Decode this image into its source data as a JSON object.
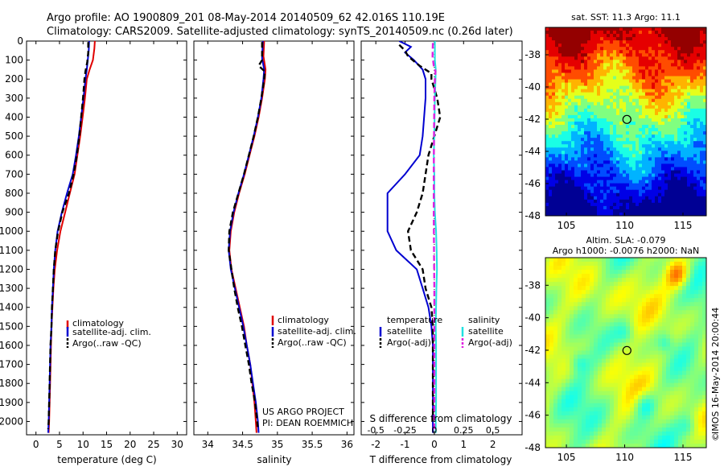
{
  "header": {
    "line1": "Argo profile: AO 1900809_201 08-May-2014 20140509_62 42.016S 110.19E",
    "line2": "Climatology: CARS2009. Satellite-adjusted climatology: synTS_20140509.nc (0.26d later)"
  },
  "colors": {
    "climatology": "#e00000",
    "satellite": "#0000d0",
    "argo": "#000000",
    "salinity_satellite": "#20e0e0",
    "salinity_argo": "#e020e0"
  },
  "notes": {
    "project_line1": "US ARGO PROJECT",
    "project_line2": "PI: DEAN ROEMMICH",
    "side_stamp": "IMOS 16-May-2014 20:00:44",
    "copyright_symbol": "©"
  },
  "chart_data": [
    {
      "type": "line",
      "id": "temperature",
      "xlabel": "temperature (deg C)",
      "xlim": [
        -2,
        32
      ],
      "ylim": [
        2070,
        0
      ],
      "xticks": [
        0,
        5,
        10,
        15,
        20,
        25,
        30
      ],
      "yticks": [
        0,
        100,
        200,
        300,
        400,
        500,
        600,
        700,
        800,
        900,
        1000,
        1100,
        1200,
        1300,
        1400,
        1500,
        1600,
        1700,
        1800,
        1900,
        2000
      ],
      "legend_items": [
        "climatology",
        "satellite-adj. clim.",
        "Argo(..raw -QC)"
      ],
      "legend_position": "lower-left",
      "series": [
        {
          "name": "climatology",
          "color_key": "climatology",
          "dash": false,
          "points": [
            [
              12.5,
              0
            ],
            [
              12.4,
              40
            ],
            [
              12.1,
              100
            ],
            [
              11.4,
              150
            ],
            [
              10.8,
              200
            ],
            [
              10.4,
              300
            ],
            [
              9.9,
              400
            ],
            [
              9.4,
              500
            ],
            [
              8.8,
              600
            ],
            [
              8.2,
              700
            ],
            [
              7.2,
              800
            ],
            [
              6.2,
              900
            ],
            [
              5.2,
              1000
            ],
            [
              4.5,
              1100
            ],
            [
              4.0,
              1200
            ],
            [
              3.7,
              1300
            ],
            [
              3.5,
              1400
            ],
            [
              3.3,
              1500
            ],
            [
              3.2,
              1600
            ],
            [
              3.0,
              1800
            ],
            [
              2.8,
              2000
            ],
            [
              2.7,
              2060
            ]
          ]
        },
        {
          "name": "satellite-adj. clim.",
          "color_key": "satellite",
          "dash": false,
          "points": [
            [
              11.3,
              0
            ],
            [
              11.2,
              50
            ],
            [
              11.0,
              100
            ],
            [
              10.8,
              150
            ],
            [
              10.5,
              200
            ],
            [
              10.1,
              300
            ],
            [
              9.6,
              400
            ],
            [
              9.1,
              500
            ],
            [
              8.5,
              600
            ],
            [
              7.8,
              700
            ],
            [
              6.6,
              800
            ],
            [
              5.5,
              900
            ],
            [
              4.6,
              1000
            ],
            [
              4.1,
              1100
            ],
            [
              3.8,
              1200
            ],
            [
              3.6,
              1300
            ],
            [
              3.4,
              1400
            ],
            [
              3.3,
              1500
            ],
            [
              3.1,
              1600
            ],
            [
              2.9,
              1800
            ],
            [
              2.7,
              2000
            ],
            [
              2.6,
              2060
            ]
          ]
        },
        {
          "name": "Argo(..raw -QC)",
          "color_key": "argo",
          "dash": true,
          "points": [
            [
              11.1,
              5
            ],
            [
              11.1,
              60
            ],
            [
              10.9,
              110
            ],
            [
              10.5,
              160
            ],
            [
              10.3,
              200
            ],
            [
              10.0,
              300
            ],
            [
              9.6,
              400
            ],
            [
              9.2,
              500
            ],
            [
              8.7,
              600
            ],
            [
              8.0,
              700
            ],
            [
              7.0,
              800
            ],
            [
              5.6,
              900
            ],
            [
              4.7,
              1000
            ],
            [
              4.1,
              1100
            ],
            [
              3.8,
              1200
            ],
            [
              3.6,
              1300
            ],
            [
              3.4,
              1400
            ],
            [
              3.3,
              1500
            ],
            [
              3.1,
              1600
            ],
            [
              2.9,
              1800
            ],
            [
              2.7,
              2000
            ],
            [
              2.6,
              2040
            ]
          ]
        }
      ]
    },
    {
      "type": "line",
      "id": "salinity",
      "xlabel": "salinity",
      "xlim": [
        33.8,
        36.1
      ],
      "ylim": [
        2070,
        0
      ],
      "xticks": [
        34,
        34.5,
        35,
        35.5,
        36
      ],
      "legend_items": [
        "climatology",
        "satellite-adj. clim.",
        "Argo(..raw -QC)"
      ],
      "legend_position": "lower-right",
      "series": [
        {
          "name": "climatology",
          "color_key": "climatology",
          "dash": false,
          "points": [
            [
              34.81,
              0
            ],
            [
              34.8,
              80
            ],
            [
              34.83,
              150
            ],
            [
              34.82,
              200
            ],
            [
              34.78,
              300
            ],
            [
              34.73,
              400
            ],
            [
              34.67,
              500
            ],
            [
              34.6,
              600
            ],
            [
              34.53,
              700
            ],
            [
              34.45,
              800
            ],
            [
              34.38,
              900
            ],
            [
              34.33,
              1000
            ],
            [
              34.31,
              1100
            ],
            [
              34.34,
              1200
            ],
            [
              34.4,
              1300
            ],
            [
              34.46,
              1400
            ],
            [
              34.52,
              1500
            ],
            [
              34.56,
              1600
            ],
            [
              34.61,
              1700
            ],
            [
              34.64,
              1800
            ],
            [
              34.67,
              1900
            ],
            [
              34.69,
              2000
            ],
            [
              34.7,
              2060
            ]
          ]
        },
        {
          "name": "satellite-adj. clim.",
          "color_key": "satellite",
          "dash": false,
          "points": [
            [
              34.79,
              0
            ],
            [
              34.78,
              90
            ],
            [
              34.81,
              150
            ],
            [
              34.8,
              200
            ],
            [
              34.77,
              300
            ],
            [
              34.72,
              400
            ],
            [
              34.66,
              500
            ],
            [
              34.59,
              600
            ],
            [
              34.52,
              700
            ],
            [
              34.44,
              800
            ],
            [
              34.37,
              900
            ],
            [
              34.32,
              1000
            ],
            [
              34.3,
              1100
            ],
            [
              34.33,
              1200
            ],
            [
              34.39,
              1300
            ],
            [
              34.45,
              1400
            ],
            [
              34.51,
              1500
            ],
            [
              34.56,
              1600
            ],
            [
              34.61,
              1700
            ],
            [
              34.65,
              1800
            ],
            [
              34.69,
              1900
            ],
            [
              34.72,
              2000
            ],
            [
              34.73,
              2060
            ]
          ]
        },
        {
          "name": "Argo(..raw -QC)",
          "color_key": "argo",
          "dash": true,
          "points": [
            [
              34.78,
              5
            ],
            [
              34.78,
              100
            ],
            [
              34.73,
              130
            ],
            [
              34.82,
              160
            ],
            [
              34.81,
              200
            ],
            [
              34.77,
              300
            ],
            [
              34.72,
              400
            ],
            [
              34.66,
              500
            ],
            [
              34.59,
              600
            ],
            [
              34.52,
              700
            ],
            [
              34.44,
              800
            ],
            [
              34.36,
              900
            ],
            [
              34.31,
              1000
            ],
            [
              34.3,
              1100
            ],
            [
              34.34,
              1200
            ],
            [
              34.38,
              1300
            ],
            [
              34.43,
              1400
            ],
            [
              34.49,
              1500
            ],
            [
              34.54,
              1600
            ],
            [
              34.59,
              1700
            ],
            [
              34.63,
              1800
            ],
            [
              34.68,
              1900
            ],
            [
              34.71,
              2000
            ],
            [
              34.72,
              2040
            ]
          ]
        }
      ]
    },
    {
      "type": "line",
      "id": "difference",
      "xlabel": "T difference from climatology",
      "xlabel_top": "S difference from climatology",
      "top_ticks": [
        -0.5,
        -0.25,
        0,
        0.25,
        0.5
      ],
      "xlim": [
        -2.5,
        3
      ],
      "ylim": [
        2070,
        0
      ],
      "xticks": [
        -2,
        -1,
        0,
        1,
        2
      ],
      "legend_groups": [
        {
          "title": "temperature",
          "items": [
            "satellite",
            "Argo(-adj)"
          ]
        },
        {
          "title": "salinity",
          "items": [
            "satellite",
            "Argo(-adj)"
          ]
        }
      ],
      "series": [
        {
          "name": "temperature satellite",
          "color_key": "satellite",
          "dash": false,
          "points": [
            [
              -1.2,
              0
            ],
            [
              -0.8,
              30
            ],
            [
              -1.0,
              60
            ],
            [
              -0.7,
              100
            ],
            [
              -0.4,
              150
            ],
            [
              -0.3,
              200
            ],
            [
              -0.3,
              300
            ],
            [
              -0.35,
              400
            ],
            [
              -0.4,
              500
            ],
            [
              -0.5,
              600
            ],
            [
              -1.0,
              700
            ],
            [
              -1.6,
              800
            ],
            [
              -1.6,
              900
            ],
            [
              -1.6,
              1000
            ],
            [
              -1.3,
              1100
            ],
            [
              -0.6,
              1200
            ],
            [
              -0.4,
              1300
            ],
            [
              -0.2,
              1400
            ],
            [
              -0.1,
              1500
            ],
            [
              -0.05,
              1600
            ],
            [
              -0.05,
              1800
            ],
            [
              -0.05,
              2000
            ],
            [
              -0.05,
              2060
            ]
          ]
        },
        {
          "name": "temperature Argo(-adj)",
          "color_key": "argo",
          "dash": true,
          "points": [
            [
              -1.2,
              20
            ],
            [
              -1.0,
              50
            ],
            [
              -0.9,
              80
            ],
            [
              -0.5,
              130
            ],
            [
              -0.1,
              170
            ],
            [
              -0.1,
              200
            ],
            [
              0.1,
              300
            ],
            [
              0.2,
              400
            ],
            [
              0.0,
              500
            ],
            [
              -0.2,
              600
            ],
            [
              -0.3,
              700
            ],
            [
              -0.4,
              800
            ],
            [
              -0.6,
              900
            ],
            [
              -0.9,
              1000
            ],
            [
              -0.8,
              1100
            ],
            [
              -0.4,
              1200
            ],
            [
              -0.3,
              1300
            ],
            [
              -0.1,
              1400
            ],
            [
              -0.05,
              1500
            ],
            [
              -0.05,
              1700
            ],
            [
              -0.05,
              2000
            ]
          ]
        },
        {
          "name": "salinity satellite",
          "color_key": "salinity_satellite",
          "dash": false,
          "points": [
            [
              0.02,
              0
            ],
            [
              0.02,
              100
            ],
            [
              0.05,
              150
            ],
            [
              0.04,
              200
            ],
            [
              0.02,
              300
            ],
            [
              0.0,
              500
            ],
            [
              -0.02,
              600
            ],
            [
              0.0,
              700
            ],
            [
              0.0,
              800
            ],
            [
              0.02,
              900
            ],
            [
              0.06,
              1000
            ],
            [
              0.08,
              1100
            ],
            [
              0.09,
              1200
            ],
            [
              0.07,
              1300
            ],
            [
              0.06,
              1400
            ],
            [
              0.05,
              1500
            ],
            [
              0.06,
              1600
            ],
            [
              0.06,
              1700
            ],
            [
              0.06,
              1800
            ],
            [
              0.06,
              1900
            ],
            [
              0.05,
              2000
            ],
            [
              0.05,
              2060
            ]
          ]
        },
        {
          "name": "salinity Argo(-adj)",
          "color_key": "salinity_argo",
          "dash": true,
          "points": [
            [
              -0.05,
              10
            ],
            [
              -0.06,
              80
            ],
            [
              -0.02,
              130
            ],
            [
              0.04,
              160
            ],
            [
              0.02,
              200
            ],
            [
              0.0,
              300
            ],
            [
              -0.01,
              500
            ],
            [
              -0.02,
              700
            ],
            [
              -0.02,
              900
            ],
            [
              -0.01,
              1100
            ],
            [
              0.0,
              1300
            ],
            [
              0.0,
              1500
            ],
            [
              0.0,
              1700
            ],
            [
              0.0,
              1900
            ],
            [
              0.0,
              2040
            ]
          ]
        }
      ]
    },
    {
      "type": "heatmap",
      "id": "sst_map",
      "title": "sat. SST: 11.3 Argo: 11.1",
      "xticks": [
        105,
        110,
        115
      ],
      "yticks": [
        -38,
        -40,
        -42,
        -44,
        -46,
        -48
      ],
      "xlim": [
        103.2,
        117
      ],
      "ylim": [
        -48,
        -36.3
      ],
      "marker": {
        "lon": 110.19,
        "lat": -42.016
      },
      "colormap": "jet"
    },
    {
      "type": "heatmap",
      "id": "sla_map",
      "title_line1": "Altim. SLA: -0.079",
      "title_line2": "Argo h1000: -0.0076 h2000: NaN",
      "xticks": [
        105,
        110,
        115
      ],
      "yticks": [
        -38,
        -40,
        -42,
        -44,
        -46,
        -48
      ],
      "xlim": [
        103.2,
        117
      ],
      "ylim": [
        -48,
        -36.3
      ],
      "marker": {
        "lon": 110.19,
        "lat": -42.016
      },
      "colormap": "jet"
    }
  ]
}
